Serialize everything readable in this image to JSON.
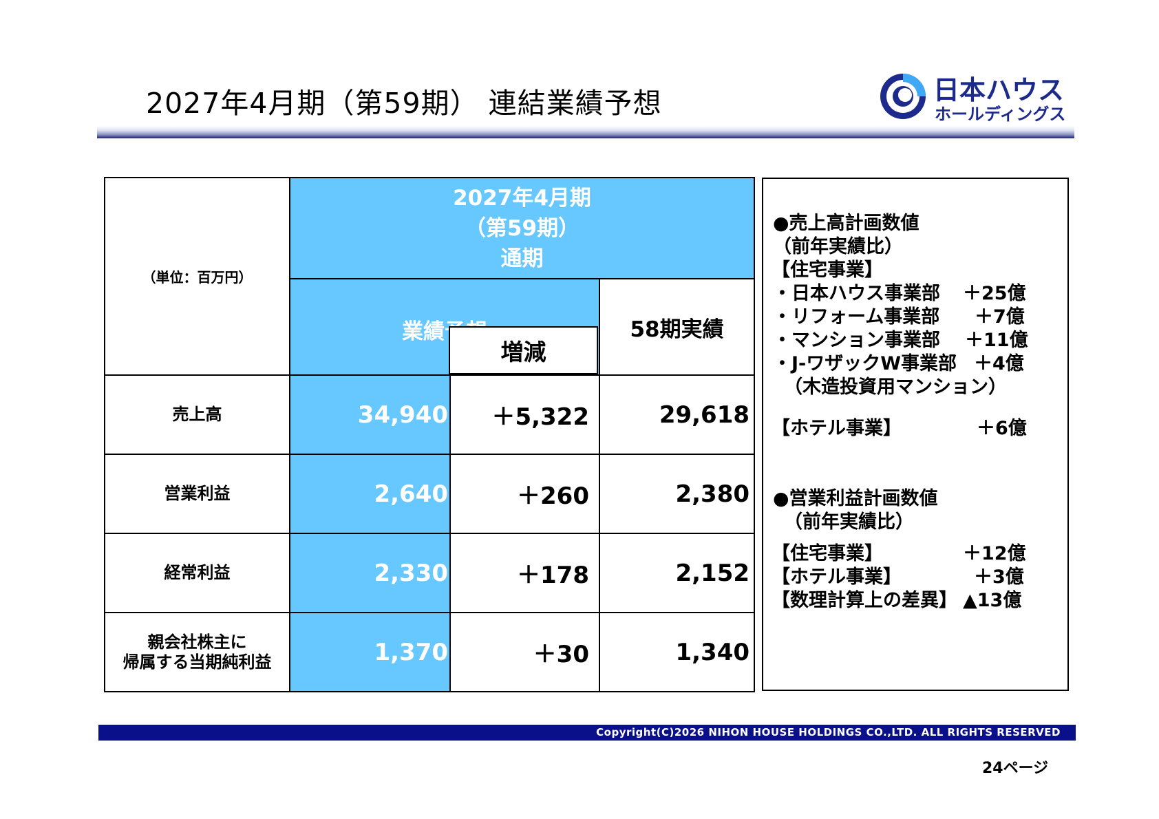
{
  "header": {
    "title": "2027年4月期（第59期） 連結業績予想",
    "logo_name": "日本ハウス",
    "logo_sub": "ホールディングス",
    "brand_color": "#1c2a8c"
  },
  "table": {
    "unit": "（単位：百万円）",
    "period_line1": "2027年4月期",
    "period_line2": "（第59期）",
    "period_line3": "通期",
    "col_forecast": "業績予想",
    "col_change": "増減",
    "col_actual": "58期実績",
    "accent_color": "#66c8ff",
    "rows": [
      {
        "label": "売上高",
        "label2": "",
        "forecast": "34,940",
        "change": "＋5,322",
        "actual": "29,618"
      },
      {
        "label": "営業利益",
        "label2": "",
        "forecast": "2,640",
        "change": "＋260",
        "actual": "2,380"
      },
      {
        "label": "経常利益",
        "label2": "",
        "forecast": "2,330",
        "change": "＋178",
        "actual": "2,152"
      },
      {
        "label": "親会社株主に",
        "label2": "帰属する当期純利益",
        "forecast": "1,370",
        "change": "＋30",
        "actual": "1,340"
      }
    ]
  },
  "notes": {
    "sales_heading": "●売上高計画数値",
    "sales_sub": "（前年実績比）",
    "housing_header": "【住宅事業】",
    "sales_items": [
      {
        "label": "・日本ハウス事業部",
        "value": "＋25億"
      },
      {
        "label": "・リフォーム事業部",
        "value": "＋7億"
      },
      {
        "label": "・マンション事業部",
        "value": "＋11億"
      },
      {
        "label": "・J-ワザックW事業部",
        "value": "＋4億"
      }
    ],
    "jwasak_sub": "（木造投資用マンション）",
    "hotel_label": "【ホテル事業】",
    "hotel_value": "＋6億",
    "op_heading": "●営業利益計画数値",
    "op_sub": "（前年実績比）",
    "op_items": [
      {
        "label": "【住宅事業】",
        "value": "＋12億"
      },
      {
        "label": "【ホテル事業】",
        "value": "＋3億"
      },
      {
        "label": "【数理計算上の差異】",
        "value": "▲13億"
      }
    ]
  },
  "footer": {
    "copyright": "Copyright(C)2026 NIHON HOUSE HOLDINGS CO.,LTD. ALL RIGHTS RESERVED",
    "page": "24ページ"
  }
}
